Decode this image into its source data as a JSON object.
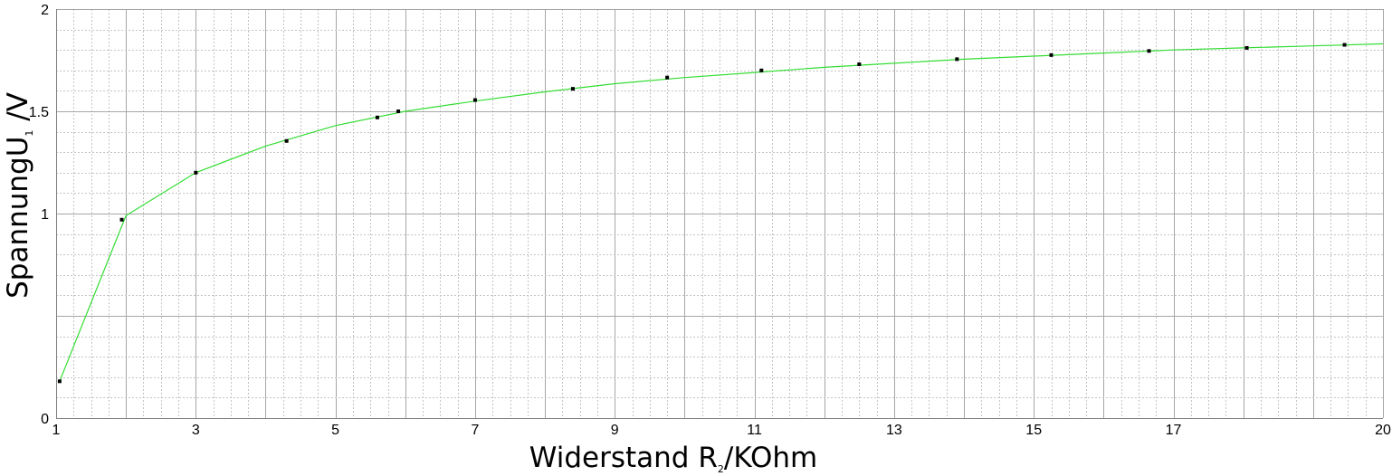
{
  "chart_data": {
    "type": "line",
    "xlabel": "Widerstand R₂/KOhm",
    "xlabel_main": "Widerstand R",
    "xlabel_sub": "2",
    "xlabel_unit": "/KOhm",
    "ylabel": "SpannungU₁ /V",
    "ylabel_main": "SpannungU",
    "ylabel_sub": "1",
    "ylabel_unit": " /V",
    "xlim": [
      1,
      20
    ],
    "ylim": [
      0,
      2
    ],
    "x_ticks": [
      "1",
      "3",
      "5",
      "7",
      "9",
      "11",
      "13",
      "15",
      "17",
      "20"
    ],
    "y_ticks": [
      "0",
      "1",
      "1.5",
      "2"
    ],
    "grid": true,
    "series": [
      {
        "style": "points",
        "x": [
          1.05,
          1.94,
          3.0,
          4.3,
          5.6,
          5.9,
          7.0,
          8.4,
          9.75,
          11.1,
          12.5,
          13.9,
          15.25,
          16.65,
          18.05,
          19.45
        ],
        "y": [
          0.18,
          0.97,
          1.2,
          1.355,
          1.47,
          1.5,
          1.555,
          1.61,
          1.665,
          1.7,
          1.73,
          1.755,
          1.775,
          1.795,
          1.81,
          1.825
        ]
      },
      {
        "style": "line",
        "x": [
          1.05,
          2.0,
          3.0,
          4.0,
          5.0,
          6.0,
          7.0,
          8.0,
          9.0,
          10.0,
          11.0,
          12.0,
          13.0,
          14.0,
          15.0,
          16.0,
          17.0,
          18.0,
          19.0,
          20.0
        ],
        "y": [
          0.18,
          0.99,
          1.2,
          1.33,
          1.43,
          1.5,
          1.55,
          1.595,
          1.635,
          1.665,
          1.69,
          1.715,
          1.735,
          1.755,
          1.77,
          1.785,
          1.8,
          1.81,
          1.82,
          1.83
        ]
      }
    ],
    "colors": {
      "line": "#33dd33",
      "points": "#000000",
      "grid_major": "#a6a6a6",
      "grid_minor": "#c4c4c4",
      "axis": "#808080"
    }
  }
}
